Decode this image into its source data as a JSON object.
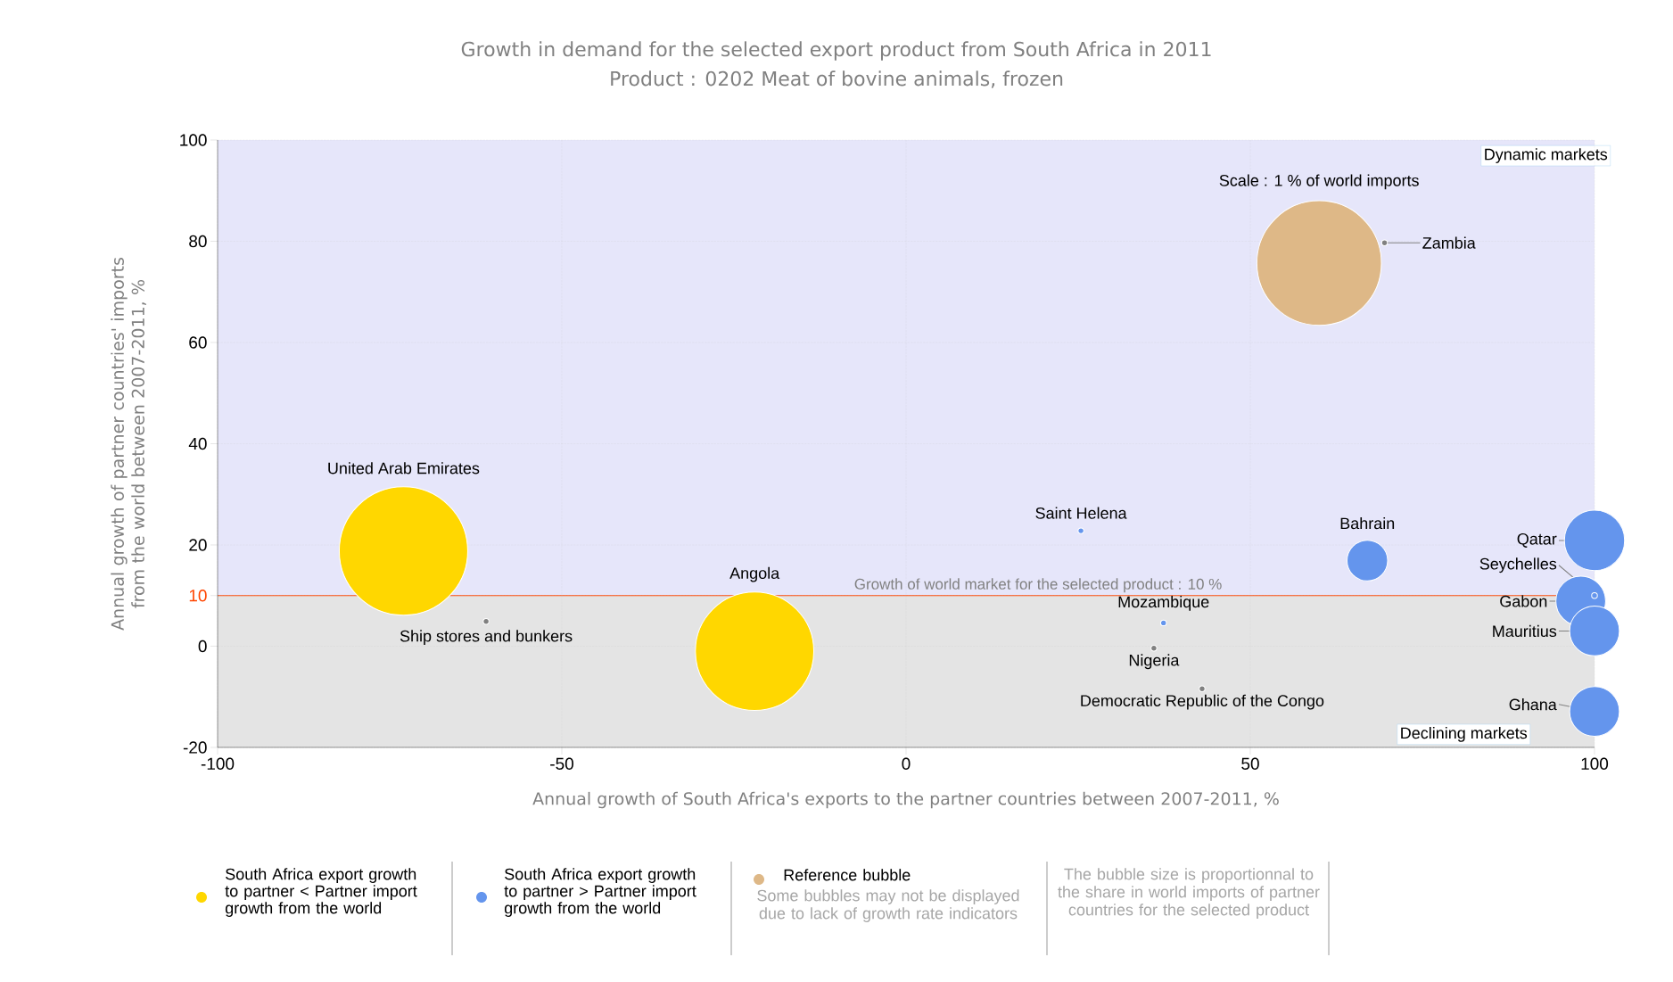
{
  "chart_data": {
    "type": "bubble",
    "title": "Growth in demand for the selected export product from South Africa in 2011",
    "subtitle": "Product : 0202 Meat of bovine animals, frozen",
    "xlabel": "Annual growth of South Africa's exports to the partner countries between 2007-2011, %",
    "ylabel": "Annual growth of partner countries' imports from the world between 2007-2011, %",
    "xlim": [
      -100,
      100
    ],
    "xticks": [
      -100,
      -50,
      0,
      50,
      100
    ],
    "ylim": [
      -20,
      100
    ],
    "yticks": [
      -20,
      0,
      10,
      20,
      40,
      60,
      80,
      100
    ],
    "grid": true,
    "legend": "bottom",
    "bands": [
      {
        "axis": "y",
        "from": 10,
        "to": 100,
        "label": "Dynamic markets",
        "color": "#e6e6fa"
      },
      {
        "axis": "y",
        "from": -20,
        "to": 10,
        "label": "Declining markets",
        "color": "#e4e4e4"
      }
    ],
    "ref_lines": [
      {
        "axis": "y",
        "value": 10,
        "label": "Growth of world market for the selected product : 10 %",
        "color": "#ff4500",
        "line_style": "solid"
      }
    ],
    "series": [
      {
        "name": "Reference bubble",
        "color": "#deb887",
        "x": [
          60
        ],
        "values": [
          75.7
        ],
        "sizes": [
          0.94
        ]
      },
      {
        "name": "South Africa export growth to partner < Partner import growth from the world",
        "color": "#ffd700",
        "x": [
          -73,
          -22
        ],
        "values": [
          18.8,
          -1
        ],
        "sizes": [
          1,
          0.85
        ]
      },
      {
        "name": "South Africa export growth to partner > Partner import growth from the world",
        "color": "#6495ed",
        "x": [
          25.4,
          67,
          100,
          100,
          98,
          100,
          100,
          37.4
        ],
        "values": [
          22.8,
          16.9,
          20.9,
          10,
          8.9,
          3,
          -12.9,
          4.6
        ],
        "sizes": [
          0.002,
          0.1,
          0.22,
          0.002,
          0.15,
          0.15,
          0.15,
          0.002
        ]
      },
      {
        "color": "#808080",
        "x": [
          -61,
          36,
          43,
          69.5
        ],
        "values": [
          4.9,
          -0.4,
          -8.4,
          79.7
        ],
        "sizes": [
          0.002,
          0.002,
          0.002,
          0.002
        ]
      }
    ],
    "annotations": [
      "Some bubbles may not be displayed due to lack of growth rate indicators",
      "The bubble size is proportionnal to the share in world imports of partner countries for the selected product",
      "Scale : 1 % of world imports",
      "United Arab Emirates",
      "Angola",
      {
        "text": "Saint Helena",
        "x": 25.4,
        "y": 22.8
      },
      {
        "text": "Bahrain",
        "x": 67,
        "y": 16.9
      },
      {
        "text": "Qatar",
        "x": 100,
        "y": 20.9
      },
      {
        "text": "Seychelles",
        "x": 100,
        "y": 10
      },
      {
        "text": "Gabon",
        "x": 98,
        "y": 8.9
      },
      {
        "text": "Mauritius",
        "x": 100,
        "y": 3
      },
      {
        "text": "Ghana",
        "x": 100,
        "y": -12.9
      },
      {
        "text": "Mozambique",
        "x": 37.4,
        "y": 4.6
      },
      {
        "text": "Ship stores and bunkers",
        "x": -61,
        "y": 4.9
      },
      {
        "text": "Nigeria",
        "x": 36,
        "y": -0.4
      },
      {
        "text": "Democratic Republic of the Congo",
        "x": 43,
        "y": -8.4
      },
      {
        "text": "Zambia",
        "x": 69.5,
        "y": 79.7
      }
    ]
  }
}
